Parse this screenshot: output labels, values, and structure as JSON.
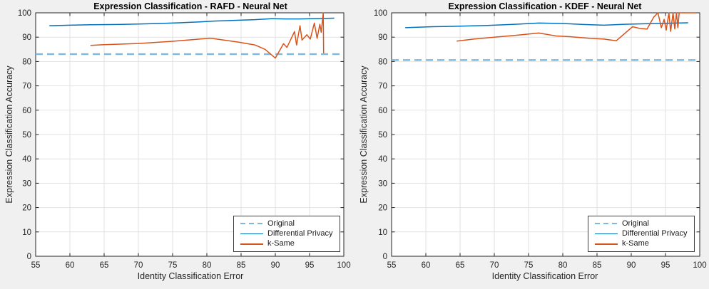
{
  "colors": {
    "figure_background": "#f0f0f0",
    "plot_background": "#ffffff",
    "grid": "#e2e2e2",
    "axis": "#262626",
    "tick_label": "#262626",
    "original_line": "#7db8de",
    "differential_privacy_line": "#0072bd",
    "k_same_line": "#d95319"
  },
  "chart_data": [
    {
      "type": "line",
      "title": "Expression Classification - RAFD - Neural Net",
      "xlabel": "Identity Classification Error",
      "ylabel": "Expression Classification Accuracy",
      "xlim": [
        55,
        100
      ],
      "ylim": [
        0,
        100
      ],
      "xticks": [
        55,
        60,
        65,
        70,
        75,
        80,
        85,
        90,
        95,
        100
      ],
      "yticks": [
        0,
        10,
        20,
        30,
        40,
        50,
        60,
        70,
        80,
        90,
        100
      ],
      "grid": true,
      "legend_position": "bottom-right-inside",
      "series": [
        {
          "name": "Original",
          "style": "dashed",
          "color": "#7db8de",
          "width": 2.4,
          "y_value": 83.0
        },
        {
          "name": "Differential Privacy",
          "style": "solid",
          "color": "#0072bd",
          "width": 1.5,
          "x": [
            57,
            60,
            63,
            67,
            70,
            73,
            76,
            79,
            81,
            84,
            87,
            89.5,
            91.5,
            93.5,
            95.5,
            98.6
          ],
          "y": [
            94.7,
            94.9,
            95.1,
            95.2,
            95.4,
            95.6,
            95.9,
            96.3,
            96.6,
            96.9,
            97.2,
            97.6,
            97.5,
            97.5,
            97.6,
            97.8
          ]
        },
        {
          "name": "k-Same",
          "style": "solid",
          "color": "#d95319",
          "width": 1.5,
          "x": [
            63,
            65,
            70,
            75,
            78,
            80.5,
            84.5,
            87,
            88.5,
            90,
            91.2,
            91.7,
            92.8,
            93.1,
            93.6,
            93.9,
            94.6,
            95.1,
            95.7,
            96.1,
            96.5,
            96.7,
            97.0,
            97.05
          ],
          "y": [
            86.6,
            86.9,
            87.4,
            88.3,
            89.0,
            89.6,
            88.0,
            86.8,
            85.0,
            81.4,
            87.3,
            85.8,
            92.3,
            86.8,
            94.7,
            88.8,
            91.0,
            89.2,
            95.8,
            89.5,
            95.3,
            92.0,
            100,
            83.4
          ]
        }
      ]
    },
    {
      "type": "line",
      "title": "Expression Classification - KDEF - Neural Net",
      "xlabel": "Identity Classification Error",
      "ylabel": "Expression Classification Accuracy",
      "xlim": [
        55,
        100
      ],
      "ylim": [
        0,
        100
      ],
      "xticks": [
        55,
        60,
        65,
        70,
        75,
        80,
        85,
        90,
        95,
        100
      ],
      "yticks": [
        0,
        10,
        20,
        30,
        40,
        50,
        60,
        70,
        80,
        90,
        100
      ],
      "grid": true,
      "legend_position": "bottom-right-inside",
      "series": [
        {
          "name": "Original",
          "style": "dashed",
          "color": "#7db8de",
          "width": 2.4,
          "y_value": 80.6
        },
        {
          "name": "Differential Privacy",
          "style": "solid",
          "color": "#0072bd",
          "width": 1.5,
          "x": [
            57,
            61,
            65,
            69,
            73,
            76.5,
            80,
            83,
            86,
            89,
            92,
            95,
            98.3
          ],
          "y": [
            93.9,
            94.3,
            94.5,
            94.8,
            95.3,
            95.8,
            95.6,
            95.2,
            94.9,
            95.3,
            95.5,
            95.7,
            95.9
          ]
        },
        {
          "name": "k-Same",
          "style": "solid",
          "color": "#d95319",
          "width": 1.5,
          "x": [
            64.5,
            67,
            70,
            73,
            76.5,
            79,
            81,
            84,
            86,
            87.8,
            90.2,
            91.2,
            92.3,
            93.3,
            93.9,
            94.4,
            94.8,
            95.1,
            95.5,
            95.75,
            96.1,
            96.35,
            96.6,
            96.8,
            97.0,
            99.5
          ],
          "y": [
            88.4,
            89.2,
            90.0,
            90.7,
            91.7,
            90.5,
            90.2,
            89.5,
            89.2,
            88.5,
            94.3,
            93.6,
            93.3,
            98.3,
            100,
            93.9,
            97.3,
            92.9,
            99.9,
            92.4,
            100,
            93.4,
            100,
            93.9,
            100,
            100
          ]
        }
      ]
    }
  ]
}
